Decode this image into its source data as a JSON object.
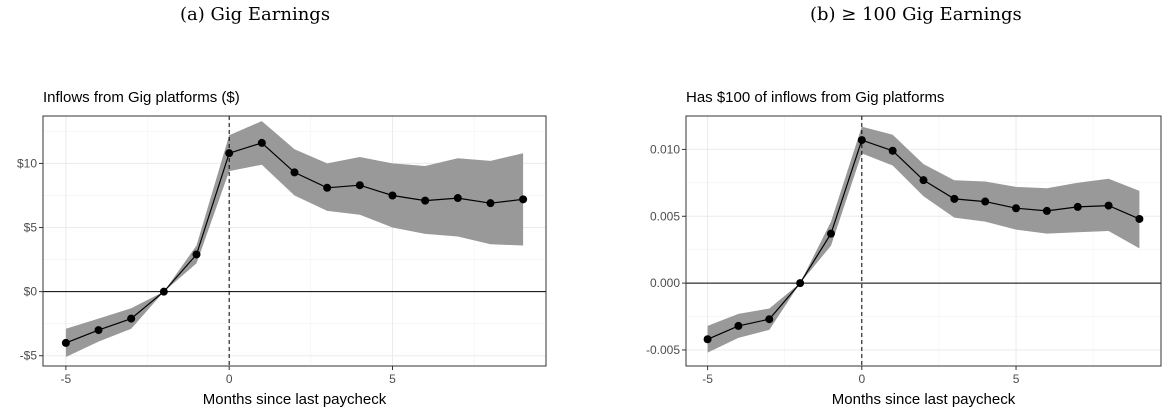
{
  "captions": {
    "a": "(a) Gig Earnings",
    "b": "(b) ≥ 100 Gig Earnings"
  },
  "chart_data": [
    {
      "type": "line",
      "title": "Inflows from Gig platforms ($)",
      "xlabel": "Months since last paycheck",
      "ylabel": "",
      "xlim": [
        -5.7,
        9.7
      ],
      "ylim": [
        -5.8,
        13.7
      ],
      "x_ticks": [
        -5,
        0,
        5
      ],
      "x_tick_labels": [
        "-5",
        "0",
        "5"
      ],
      "y_ticks": [
        -5,
        0,
        5,
        10
      ],
      "y_tick_labels": [
        "-$5",
        "$0",
        "$5",
        "$10"
      ],
      "x": [
        -5,
        -4,
        -3,
        -2,
        -1,
        0,
        1,
        2,
        3,
        4,
        5,
        6,
        7,
        8,
        9
      ],
      "series": [
        {
          "values": [
            -4.0,
            -3.0,
            -2.1,
            0.0,
            2.9,
            10.8,
            11.6,
            9.3,
            8.1,
            8.3,
            7.5,
            7.1,
            7.3,
            6.9,
            7.2
          ],
          "ci_lower": [
            -5.1,
            -3.9,
            -2.9,
            0.0,
            2.2,
            9.4,
            9.9,
            7.5,
            6.3,
            6.0,
            5.0,
            4.5,
            4.3,
            3.7,
            3.6
          ],
          "ci_upper": [
            -2.9,
            -2.1,
            -1.3,
            0.0,
            3.6,
            12.2,
            13.3,
            11.1,
            10.0,
            10.5,
            10.0,
            9.8,
            10.4,
            10.2,
            10.8
          ]
        }
      ],
      "vline_x": 0,
      "hline_y": 0,
      "grid": true
    },
    {
      "type": "line",
      "title": "Has $100 of inflows from Gig platforms",
      "xlabel": "Months since last paycheck",
      "ylabel": "",
      "xlim": [
        -5.7,
        9.7
      ],
      "ylim": [
        -0.0062,
        0.0125
      ],
      "x_ticks": [
        -5,
        0,
        5
      ],
      "x_tick_labels": [
        "-5",
        "0",
        "5"
      ],
      "y_ticks": [
        -0.005,
        0.0,
        0.005,
        0.01
      ],
      "y_tick_labels": [
        "-0.005",
        "0.000",
        "0.005",
        "0.010"
      ],
      "x": [
        -5,
        -4,
        -3,
        -2,
        -1,
        0,
        1,
        2,
        3,
        4,
        5,
        6,
        7,
        8,
        9
      ],
      "series": [
        {
          "values": [
            -0.0042,
            -0.0032,
            -0.0027,
            0.0,
            0.0037,
            0.0107,
            0.0099,
            0.0077,
            0.0063,
            0.0061,
            0.0056,
            0.0054,
            0.0057,
            0.0058,
            0.0048
          ],
          "ci_lower": [
            -0.0052,
            -0.0041,
            -0.0035,
            0.0,
            0.0028,
            0.0097,
            0.0088,
            0.0065,
            0.0049,
            0.0046,
            0.004,
            0.0037,
            0.0038,
            0.0039,
            0.0026
          ],
          "ci_upper": [
            -0.0032,
            -0.0023,
            -0.0019,
            0.0,
            0.0046,
            0.0117,
            0.0111,
            0.0089,
            0.0077,
            0.0076,
            0.0072,
            0.0071,
            0.0075,
            0.0078,
            0.0069
          ]
        }
      ],
      "vline_x": 0,
      "hline_y": 0,
      "grid": true
    }
  ]
}
